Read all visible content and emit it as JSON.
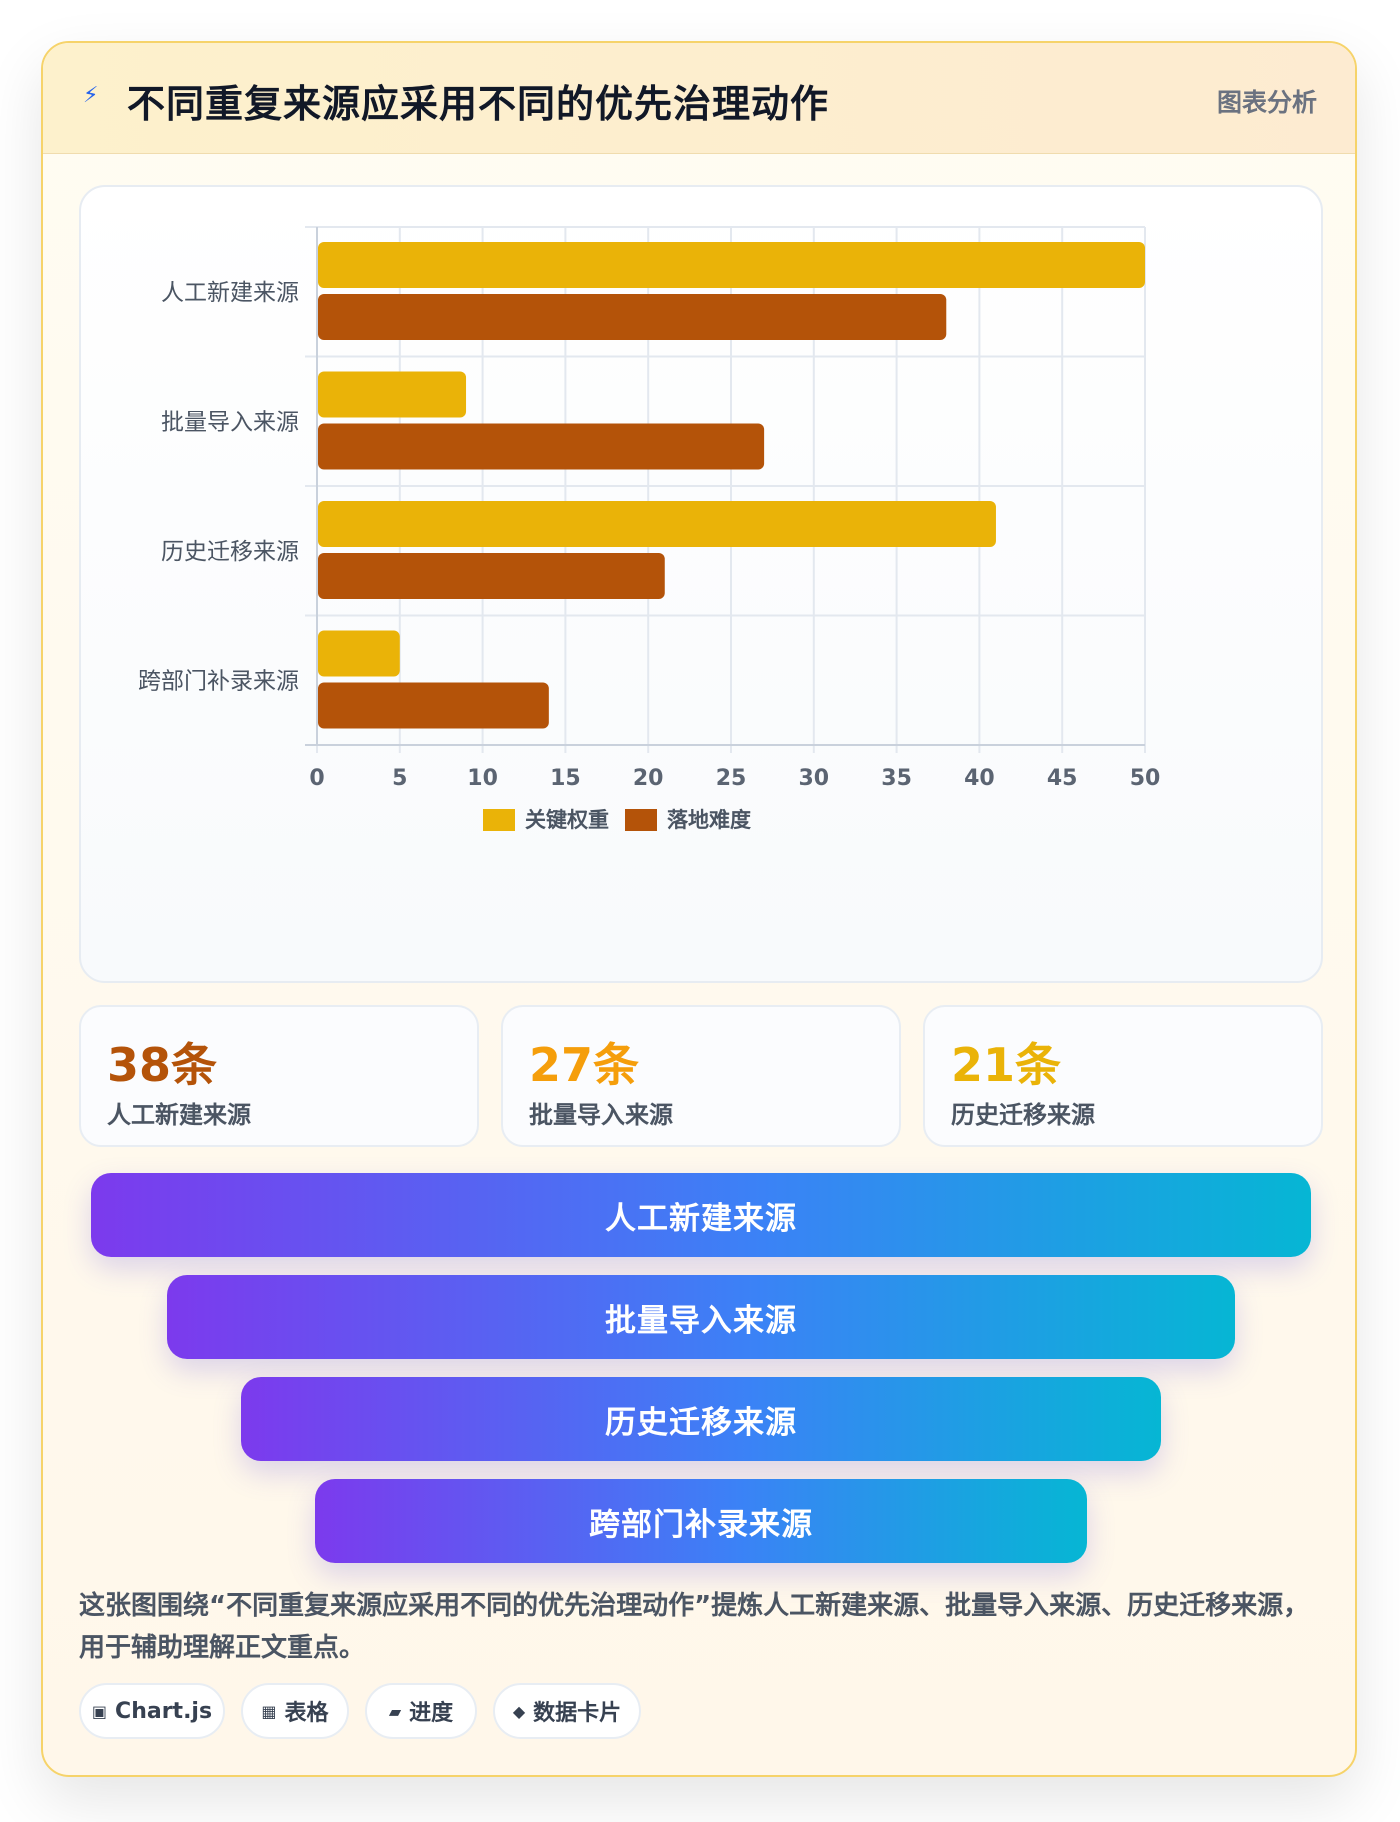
{
  "header": {
    "icon": "bolt-icon",
    "title": "不同重复来源应采用不同的优先治理动作",
    "tag": "图表分析"
  },
  "chart_data": {
    "type": "bar",
    "orientation": "horizontal",
    "categories": [
      "人工新建来源",
      "批量导入来源",
      "历史迁移来源",
      "跨部门补录来源"
    ],
    "series": [
      {
        "name": "关键权重",
        "values": [
          50,
          9,
          41,
          5
        ],
        "color": "#eab308"
      },
      {
        "name": "落地难度",
        "values": [
          38,
          27,
          21,
          14
        ],
        "color": "#b45309"
      }
    ],
    "xlim": [
      0,
      50
    ],
    "xticks": [
      "0",
      "5",
      "10",
      "15",
      "20",
      "25",
      "30",
      "35",
      "40",
      "45",
      "50"
    ],
    "grid": true,
    "legend_position": "bottom"
  },
  "stats": [
    {
      "value": "38条",
      "label": "人工新建来源",
      "color": "#b45309"
    },
    {
      "value": "27条",
      "label": "批量导入来源",
      "color": "#f59e0b"
    },
    {
      "value": "21条",
      "label": "历史迁移来源",
      "color": "#eab308"
    }
  ],
  "funnel": [
    "人工新建来源",
    "批量导入来源",
    "历史迁移来源",
    "跨部门补录来源"
  ],
  "description": "这张图围绕“不同重复来源应采用不同的优先治理动作”提炼人工新建来源、批量导入来源、历史迁移来源，用于辅助理解正文重点。",
  "chips": [
    {
      "icon": "chart-icon",
      "glyph": "▣",
      "label": "Chart.js"
    },
    {
      "icon": "table-icon",
      "glyph": "▦",
      "label": "表格"
    },
    {
      "icon": "progress-icon",
      "glyph": "▰",
      "label": "进度"
    },
    {
      "icon": "data-card-icon",
      "glyph": "◆",
      "label": "数据卡片"
    }
  ]
}
